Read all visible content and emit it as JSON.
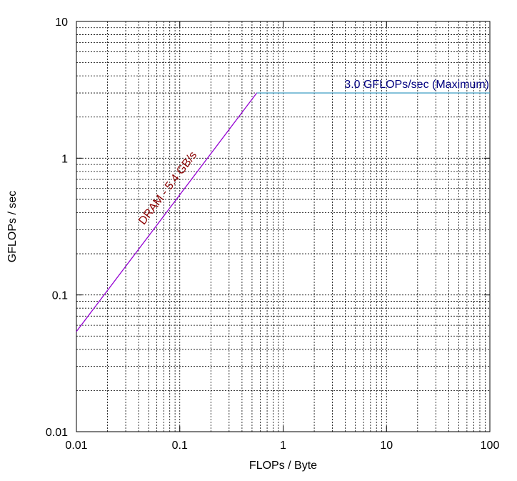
{
  "chart_data": {
    "type": "line",
    "title": "",
    "xlabel": "FLOPs / Byte",
    "ylabel": "GFLOPs / sec",
    "xscale": "log",
    "yscale": "log",
    "xlim": [
      0.01,
      100
    ],
    "ylim": [
      0.01,
      10
    ],
    "grid": true,
    "x_ticks": [
      {
        "value": 0.01,
        "label": "0.01"
      },
      {
        "value": 0.1,
        "label": "0.1"
      },
      {
        "value": 1,
        "label": "1"
      },
      {
        "value": 10,
        "label": "10"
      },
      {
        "value": 100,
        "label": "100"
      }
    ],
    "y_ticks": [
      {
        "value": 0.01,
        "label": "0.01"
      },
      {
        "value": 0.1,
        "label": "0.1"
      },
      {
        "value": 1,
        "label": "1"
      },
      {
        "value": 10,
        "label": "10"
      }
    ],
    "series": [
      {
        "color": "#9400d3",
        "points": [
          [
            0.01,
            0.054
          ],
          [
            0.556,
            3.0
          ]
        ]
      },
      {
        "color": "#4aa3c8",
        "points": [
          [
            0.556,
            3.0
          ],
          [
            100,
            3.0
          ]
        ]
      }
    ],
    "annotations": [
      {
        "text": "DRAM - 5.4 GB/s",
        "color": "#8b0000",
        "at": [
          0.045,
          0.3
        ],
        "align": "along-series-0"
      },
      {
        "text": "3.0 GFLOPs/sec (Maximum)",
        "color": "#000080",
        "at": [
          100,
          3.0
        ],
        "align": "above-end"
      }
    ]
  }
}
